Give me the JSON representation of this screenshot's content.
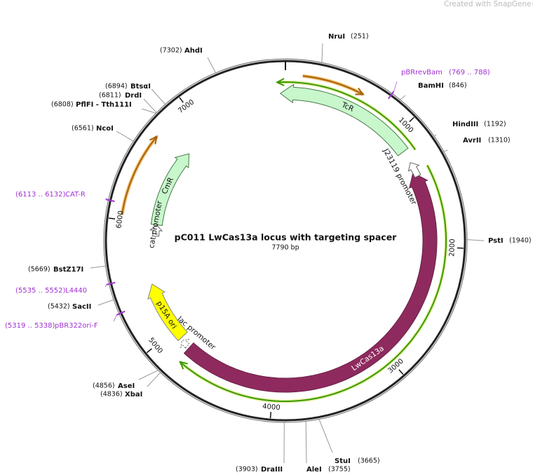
{
  "watermark": "Created with SnapGene®",
  "title": "pC011 LwCas13a locus with targeting spacer",
  "length": {
    "value": 7790,
    "label": "7790 bp"
  },
  "ruler": [
    1000,
    2000,
    3000,
    4000,
    5000,
    6000,
    7000
  ],
  "sites": [
    {
      "name": "NruI",
      "position": {
        "value": 251,
        "label": "(251)"
      }
    },
    {
      "name": "BamHI",
      "position": {
        "value": 846,
        "label": "(846)"
      }
    },
    {
      "name": "HindIII",
      "position": {
        "value": 1192,
        "label": "(1192)"
      }
    },
    {
      "name": "AvrII",
      "position": {
        "value": 1310,
        "label": "(1310)"
      }
    },
    {
      "name": "PstI",
      "position": {
        "value": 1940,
        "label": "(1940)"
      }
    },
    {
      "name": "StuI",
      "position": {
        "value": 3665,
        "label": "(3665)"
      }
    },
    {
      "name": "AleI",
      "position": {
        "value": 3755,
        "label": "(3755)"
      }
    },
    {
      "name": "DraIII",
      "position": {
        "value": 3903,
        "label": "(3903)"
      }
    },
    {
      "name": "AseI",
      "position": {
        "value": 4856,
        "label": "(4856)"
      }
    },
    {
      "name": "XbaI",
      "position": {
        "value": 4836,
        "label": "(4836)"
      }
    },
    {
      "name": "SacII",
      "position": {
        "value": 5432,
        "label": "(5432)"
      }
    },
    {
      "name": "BstZ17I",
      "position": {
        "value": 5669,
        "label": "(5669)"
      }
    },
    {
      "name": "NcoI",
      "position": {
        "value": 6561,
        "label": "(6561)"
      }
    },
    {
      "name": "PflFI - Tth111I",
      "position": {
        "value": 6808,
        "label": "(6808)"
      }
    },
    {
      "name": "DrdI",
      "position": {
        "value": 6811,
        "label": "(6811)"
      }
    },
    {
      "name": "BtsαI",
      "position": {
        "value": 6894,
        "label": "(6894)"
      }
    },
    {
      "name": "AhdI",
      "position": {
        "value": 7302,
        "label": "(7302)"
      }
    }
  ],
  "primers": [
    {
      "name": "pBRrevBam",
      "start": 769,
      "end": 788,
      "label": "(769 .. 788)"
    },
    {
      "name": "CAT-R",
      "start": 6113,
      "end": 6132,
      "label": "(6113 .. 6132)"
    },
    {
      "name": "L4440",
      "start": 5535,
      "end": 5552,
      "label": "(5535 .. 5552)"
    },
    {
      "name": "pBR322ori-F",
      "start": 5319,
      "end": 5338,
      "label": "(5319 .. 5338)"
    }
  ],
  "features": [
    {
      "name": "TcR"
    },
    {
      "name": "J23119 promoter"
    },
    {
      "name": "LwCas13a"
    },
    {
      "name": "CmR"
    },
    {
      "name": "cat promoter"
    },
    {
      "name": "p15A ori"
    },
    {
      "name": "lac promoter"
    }
  ]
}
